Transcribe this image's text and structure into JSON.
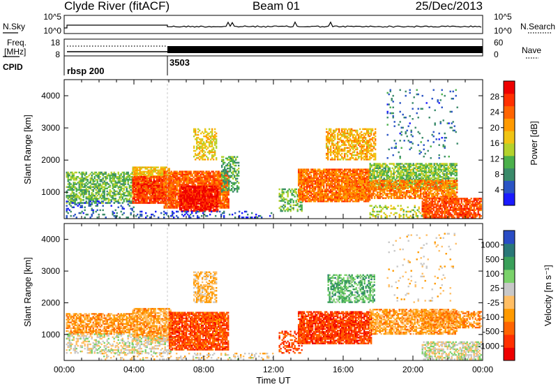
{
  "header": {
    "title": "Clyde River (fitACF)",
    "beam": "Beam 01",
    "date": "25/Dec/2013"
  },
  "noise_panel": {
    "left_label": "N.Sky",
    "left_ticks": [
      "10^5",
      "10^0"
    ],
    "right_label": "N.Search",
    "right_ticks": [
      "10^5",
      "10^0"
    ]
  },
  "freq_panel": {
    "left_label_line1": "Freq.",
    "left_label_line2": "[MHz]",
    "left_ticks": [
      "18",
      "8"
    ],
    "right_label": "Nave",
    "right_ticks": [
      "60",
      "0"
    ]
  },
  "cpid_panel": {
    "label": "CPID",
    "segments": [
      {
        "label": "rbsp 200",
        "start_hour": 0
      },
      {
        "label": "3503",
        "start_hour": 6
      }
    ]
  },
  "chart_data": [
    {
      "type": "heatmap",
      "name": "power-panel",
      "xlabel": "",
      "ylabel": "Slant Range [km]",
      "xlim": [
        0,
        24
      ],
      "ylim": [
        180,
        4500
      ],
      "yticks": [
        1000,
        2000,
        3000,
        4000
      ],
      "colorbar": {
        "label": "Power [dB]",
        "ticks": [
          "4",
          "8",
          "12",
          "16",
          "20",
          "24",
          "28"
        ],
        "range": [
          0,
          30
        ],
        "colors": [
          "#1a1aff",
          "#2a54c4",
          "#3a8a6a",
          "#4bb04b",
          "#b4d22c",
          "#f0c414",
          "#ff9a00",
          "#ff6400",
          "#ff3000",
          "#ee0000"
        ]
      },
      "regions": [
        {
          "t0": 0.1,
          "t1": 3.9,
          "r0": 650,
          "r1": 1600,
          "v": 11,
          "d": 0.6
        },
        {
          "t0": 0.1,
          "t1": 4.0,
          "r0": 200,
          "r1": 700,
          "v": 5,
          "d": 0.2
        },
        {
          "t0": 3.9,
          "t1": 6.0,
          "r0": 900,
          "r1": 1800,
          "v": 17,
          "d": 0.75
        },
        {
          "t0": 3.9,
          "t1": 6.3,
          "r0": 650,
          "r1": 1500,
          "v": 25,
          "d": 0.85
        },
        {
          "t0": 5.7,
          "t1": 9.4,
          "r0": 500,
          "r1": 1650,
          "v": 23,
          "d": 0.85
        },
        {
          "t0": 6.6,
          "t1": 8.8,
          "r0": 400,
          "r1": 1200,
          "v": 28,
          "d": 0.8
        },
        {
          "t0": 7.4,
          "t1": 8.7,
          "r0": 2000,
          "r1": 2950,
          "v": 16,
          "d": 0.5
        },
        {
          "t0": 9.0,
          "t1": 10.0,
          "r0": 1000,
          "r1": 2100,
          "v": 10,
          "d": 0.5
        },
        {
          "t0": 4.0,
          "t1": 12.0,
          "r0": 200,
          "r1": 420,
          "v": 4,
          "d": 0.2
        },
        {
          "t0": 12.3,
          "t1": 13.6,
          "r0": 400,
          "r1": 1100,
          "v": 11,
          "d": 0.45
        },
        {
          "t0": 13.4,
          "t1": 17.5,
          "r0": 700,
          "r1": 1700,
          "v": 22,
          "d": 0.85
        },
        {
          "t0": 15.0,
          "t1": 17.8,
          "r0": 2000,
          "r1": 2950,
          "v": 18,
          "d": 0.6
        },
        {
          "t0": 17.5,
          "t1": 22.5,
          "r0": 1100,
          "r1": 1900,
          "v": 12,
          "d": 0.7
        },
        {
          "t0": 16.0,
          "t1": 22.5,
          "r0": 800,
          "r1": 1350,
          "v": 21,
          "d": 0.7
        },
        {
          "t0": 20.5,
          "t1": 23.9,
          "r0": 200,
          "r1": 800,
          "v": 24,
          "d": 0.8
        },
        {
          "t0": 17.5,
          "t1": 20.5,
          "r0": 200,
          "r1": 600,
          "v": 14,
          "d": 0.3
        },
        {
          "t0": 18.5,
          "t1": 22.5,
          "r0": 2000,
          "r1": 4200,
          "v": 6,
          "d": 0.05
        }
      ]
    },
    {
      "type": "heatmap",
      "name": "velocity-panel",
      "xlabel": "Time UT",
      "ylabel": "Slant Range [km]",
      "xlim": [
        0,
        24
      ],
      "ylim": [
        180,
        4500
      ],
      "yticks": [
        1000,
        2000,
        3000,
        4000
      ],
      "xticks": [
        "00:00",
        "04:00",
        "08:00",
        "12:00",
        "16:00",
        "20:00",
        "00:00"
      ],
      "colorbar": {
        "label": "Velocity [m s⁻¹]",
        "ticks": [
          "1000",
          "500",
          "100",
          "25",
          "-25",
          "-100",
          "-500",
          "-1000"
        ],
        "range": [
          -1000,
          1000
        ],
        "colors": [
          "#ee0000",
          "#ff3000",
          "#ff6400",
          "#ff9a00",
          "#ffbe64",
          "#c8c8c8",
          "#7ad26a",
          "#3aa05a",
          "#2a7878",
          "#2a4cc4"
        ]
      },
      "regions": [
        {
          "t0": 0.1,
          "t1": 3.9,
          "r0": 1000,
          "r1": 1650,
          "v": -300,
          "d": 0.7
        },
        {
          "t0": 0.1,
          "t1": 3.9,
          "r0": 400,
          "r1": 1000,
          "v": 60,
          "d": 0.45
        },
        {
          "t0": 3.9,
          "t1": 6.1,
          "r0": 800,
          "r1": 1800,
          "v": -250,
          "d": 0.8
        },
        {
          "t0": 3.9,
          "t1": 6.1,
          "r0": 400,
          "r1": 900,
          "v": 80,
          "d": 0.5
        },
        {
          "t0": 6.0,
          "t1": 9.4,
          "r0": 500,
          "r1": 1700,
          "v": -600,
          "d": 0.85
        },
        {
          "t0": 7.4,
          "t1": 8.7,
          "r0": 2000,
          "r1": 2950,
          "v": -150,
          "d": 0.55
        },
        {
          "t0": 12.3,
          "t1": 13.6,
          "r0": 400,
          "r1": 1100,
          "v": -600,
          "d": 0.4
        },
        {
          "t0": 13.4,
          "t1": 17.6,
          "r0": 700,
          "r1": 1700,
          "v": -650,
          "d": 0.85
        },
        {
          "t0": 15.1,
          "t1": 17.8,
          "r0": 2000,
          "r1": 2900,
          "v": 400,
          "d": 0.55
        },
        {
          "t0": 17.5,
          "t1": 22.5,
          "r0": 1000,
          "r1": 1800,
          "v": -250,
          "d": 0.7
        },
        {
          "t0": 20.5,
          "t1": 23.9,
          "r0": 1200,
          "r1": 1700,
          "v": -350,
          "d": 0.6
        },
        {
          "t0": 20.5,
          "t1": 23.9,
          "r0": 200,
          "r1": 750,
          "v": 90,
          "d": 0.6
        },
        {
          "t0": 2.0,
          "t1": 12.0,
          "r0": 200,
          "r1": 400,
          "v": 0,
          "d": 0.25
        },
        {
          "t0": 18.5,
          "t1": 22.5,
          "r0": 2000,
          "r1": 4200,
          "v": -40,
          "d": 0.05
        }
      ]
    }
  ]
}
